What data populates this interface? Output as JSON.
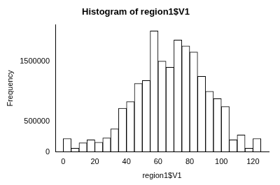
{
  "chart_data": {
    "type": "histogram",
    "title": "Histogram of region1$V1",
    "x_label": "region1$V1",
    "y_label": "Frequency",
    "bins": [
      0,
      5,
      10,
      15,
      20,
      25,
      30,
      35,
      40,
      45,
      50,
      55,
      60,
      65,
      70,
      75,
      80,
      85,
      90,
      95,
      100,
      105,
      110,
      115,
      120,
      125
    ],
    "values": [
      220000,
      60000,
      150000,
      200000,
      160000,
      230000,
      380000,
      720000,
      830000,
      1130000,
      1180000,
      2000000,
      1500000,
      1400000,
      1850000,
      1750000,
      1650000,
      1250000,
      1000000,
      880000,
      750000,
      200000,
      280000,
      60000,
      220000
    ],
    "color": "#ffffff",
    "xlim": [
      -5,
      130
    ],
    "xticks": [
      0,
      20,
      40,
      60,
      80,
      100,
      120
    ],
    "ylim": [
      0,
      2100000
    ],
    "yticks": [
      0,
      500000,
      1500000
    ],
    "grid": false
  }
}
